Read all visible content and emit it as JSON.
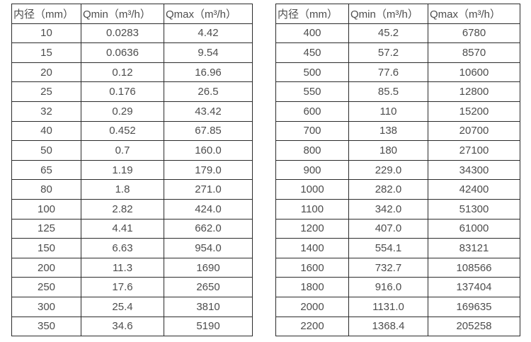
{
  "colors": {
    "background": "#ffffff",
    "border": "#2b2b2b",
    "text": "#4d4d4d"
  },
  "tables": [
    {
      "headers": [
        "内径（mm）",
        "Qmin（m³/h）",
        "Qmax（m³/h）"
      ],
      "rows": [
        [
          "10",
          "0.0283",
          "4.42"
        ],
        [
          "15",
          "0.0636",
          "9.54"
        ],
        [
          "20",
          "0.12",
          "16.96"
        ],
        [
          "25",
          "0.176",
          "26.5"
        ],
        [
          "32",
          "0.29",
          "43.42"
        ],
        [
          "40",
          "0.452",
          "67.85"
        ],
        [
          "50",
          "0.7",
          "160.0"
        ],
        [
          "65",
          "1.19",
          "179.0"
        ],
        [
          "80",
          "1.8",
          "271.0"
        ],
        [
          "100",
          "2.82",
          "424.0"
        ],
        [
          "125",
          "4.41",
          "662.0"
        ],
        [
          "150",
          "6.63",
          "954.0"
        ],
        [
          "200",
          "11.3",
          "1690"
        ],
        [
          "250",
          "17.6",
          "2650"
        ],
        [
          "300",
          "25.4",
          "3810"
        ],
        [
          "350",
          "34.6",
          "5190"
        ]
      ]
    },
    {
      "headers": [
        "内径（mm）",
        "Qmin（m³/h）",
        "Qmax（m³/h）"
      ],
      "rows": [
        [
          "400",
          "45.2",
          "6780"
        ],
        [
          "450",
          "57.2",
          "8570"
        ],
        [
          "500",
          "77.6",
          "10600"
        ],
        [
          "550",
          "85.5",
          "12800"
        ],
        [
          "600",
          "110",
          "15200"
        ],
        [
          "700",
          "138",
          "20700"
        ],
        [
          "800",
          "180",
          "27100"
        ],
        [
          "900",
          "229.0",
          "34300"
        ],
        [
          "1000",
          "282.0",
          "42400"
        ],
        [
          "1100",
          "342.0",
          "51300"
        ],
        [
          "1200",
          "407.0",
          "61000"
        ],
        [
          "1400",
          "554.1",
          "83121"
        ],
        [
          "1600",
          "732.7",
          "108566"
        ],
        [
          "1800",
          "916.0",
          "137404"
        ],
        [
          "2000",
          "1131.0",
          "169635"
        ],
        [
          "2200",
          "1368.4",
          "205258"
        ]
      ]
    }
  ]
}
